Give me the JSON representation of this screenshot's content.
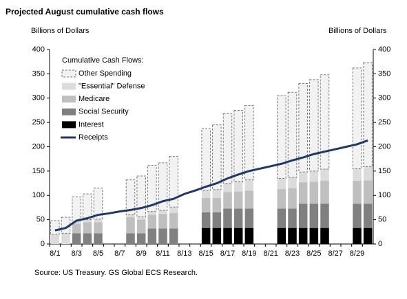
{
  "chart_data": {
    "type": "bar",
    "stacked": true,
    "title": "Projected August cumulative cash flows",
    "ylabel": "Billions of Dollars",
    "y2label": "Billions of Dollars",
    "legend_title": "Cumulative Cash Flows:",
    "source": "Source: US Treasury.  GS Global ECS Research.",
    "categories": [
      "8/1",
      null,
      "8/3",
      null,
      "8/5",
      null,
      "8/7",
      null,
      "8/9",
      null,
      "8/11",
      null,
      "8/13",
      null,
      "8/15",
      null,
      "8/17",
      null,
      "8/19",
      null,
      "8/21",
      null,
      "8/23",
      null,
      "8/25",
      null,
      "8/27",
      null,
      "8/29",
      null
    ],
    "ylim": [
      0,
      400
    ],
    "yticks": [
      0,
      50,
      100,
      150,
      200,
      250,
      300,
      350,
      400
    ],
    "y2lim": [
      0,
      400
    ],
    "y2ticks": [
      0,
      50,
      100,
      150,
      200,
      250,
      300,
      350,
      400
    ],
    "series": [
      {
        "name": "Interest",
        "color": "#000000",
        "values": [
          0,
          0,
          0,
          0,
          0,
          null,
          null,
          0,
          0,
          0,
          0,
          0,
          null,
          null,
          33,
          33,
          33,
          33,
          33,
          null,
          null,
          33,
          33,
          33,
          33,
          33,
          null,
          null,
          33,
          33
        ]
      },
      {
        "name": "Social Security",
        "color": "#808080",
        "values": [
          0,
          0,
          22,
          22,
          22,
          null,
          null,
          22,
          22,
          32,
          32,
          32,
          null,
          null,
          32,
          32,
          40,
          40,
          40,
          null,
          null,
          40,
          40,
          50,
          50,
          50,
          null,
          null,
          50,
          50
        ]
      },
      {
        "name": "Medicare",
        "color": "#bfbfbf",
        "values": [
          0,
          0,
          20,
          23,
          23,
          null,
          null,
          33,
          28,
          28,
          30,
          32,
          null,
          null,
          30,
          30,
          34,
          35,
          37,
          null,
          null,
          40,
          42,
          44,
          45,
          47,
          null,
          null,
          47,
          48
        ]
      },
      {
        "name": "\"Essential\" Defense",
        "color": "#dcdcdc",
        "values": [
          20,
          22,
          5,
          5,
          6,
          null,
          null,
          5,
          6,
          7,
          7,
          12,
          null,
          null,
          15,
          17,
          18,
          20,
          22,
          null,
          null,
          22,
          22,
          21,
          22,
          24,
          null,
          null,
          25,
          28
        ]
      },
      {
        "name": "Other Spending",
        "color": "#f2f2f2",
        "dashed": true,
        "values": [
          28,
          33,
          50,
          53,
          64,
          null,
          null,
          72,
          84,
          95,
          98,
          104,
          null,
          null,
          127,
          133,
          143,
          147,
          153,
          null,
          null,
          170,
          175,
          182,
          188,
          194,
          null,
          null,
          207,
          214
        ]
      },
      {
        "name": "Receipts",
        "color": "#1f3864",
        "type": "line",
        "values": [
          28,
          33,
          48,
          53,
          60,
          63,
          67,
          70,
          74,
          80,
          88,
          93,
          103,
          110,
          118,
          125,
          135,
          143,
          150,
          155,
          160,
          165,
          172,
          178,
          185,
          190,
          195,
          200,
          205,
          213
        ]
      }
    ]
  }
}
